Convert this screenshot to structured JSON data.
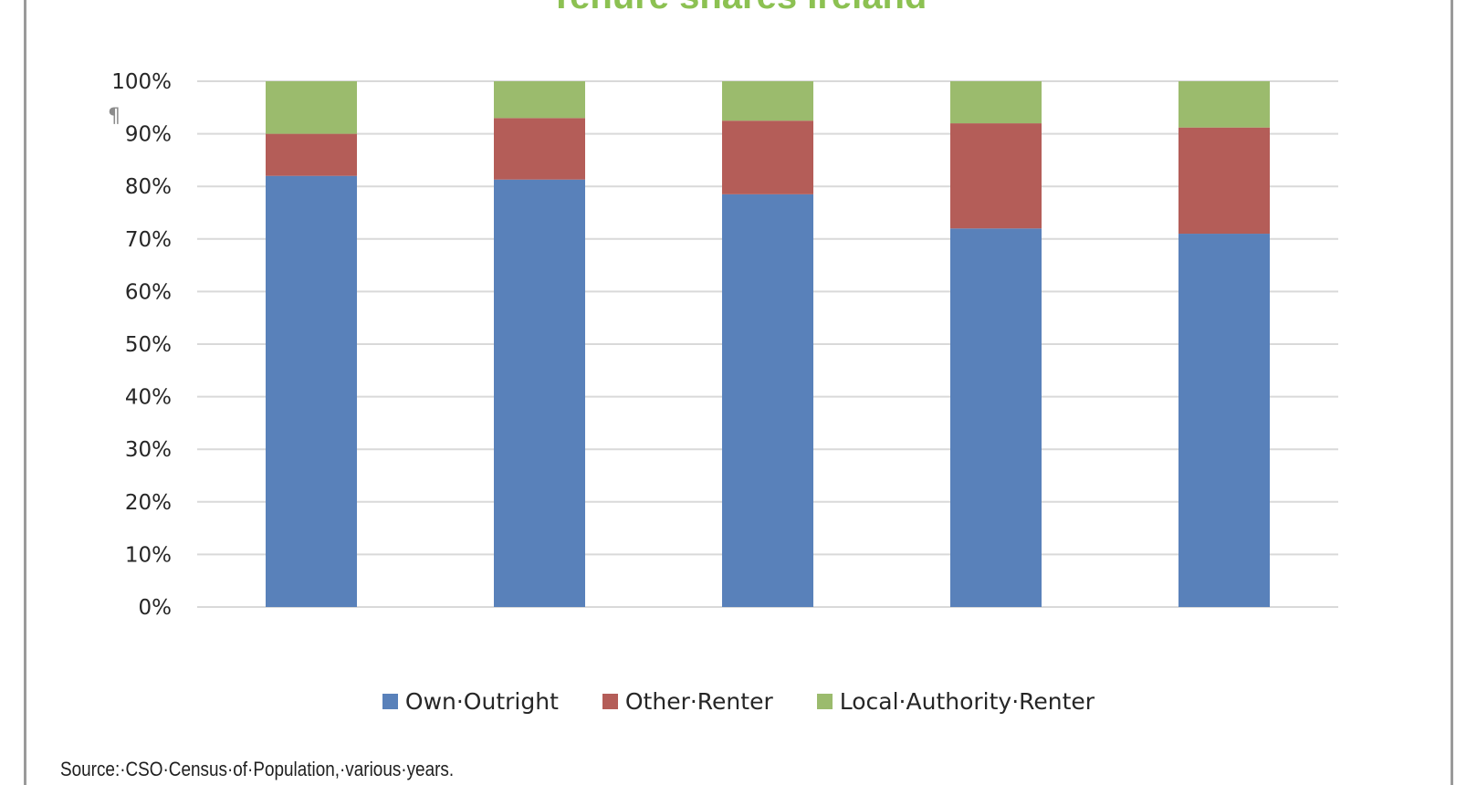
{
  "chart_data": {
    "type": "bar",
    "stacked": true,
    "title": "Tenure shares Ireland",
    "xlabel": "",
    "ylabel": "",
    "categories": [
      "",
      "",
      "",
      "",
      ""
    ],
    "ylim": [
      0,
      100
    ],
    "y_ticks": [
      "0%",
      "10%",
      "20%",
      "30%",
      "40%",
      "50%",
      "60%",
      "70%",
      "80%",
      "90%",
      "100%"
    ],
    "grid": true,
    "legend_position": "bottom",
    "series": [
      {
        "name": "Own·Outright",
        "color": "#5981ba",
        "values": [
          82,
          81.3,
          78.5,
          72,
          71
        ]
      },
      {
        "name": "Other·Renter",
        "color": "#b45d58",
        "values": [
          8,
          11.7,
          14,
          20,
          20.2
        ]
      },
      {
        "name": "Local·Authority·Renter",
        "color": "#9bbb6d",
        "values": [
          10,
          7,
          7.5,
          8,
          8.8
        ]
      }
    ]
  },
  "annotations": {
    "pilcrow": "¶"
  },
  "source": "Source:·CSO·Census·of·Population,·various·years."
}
